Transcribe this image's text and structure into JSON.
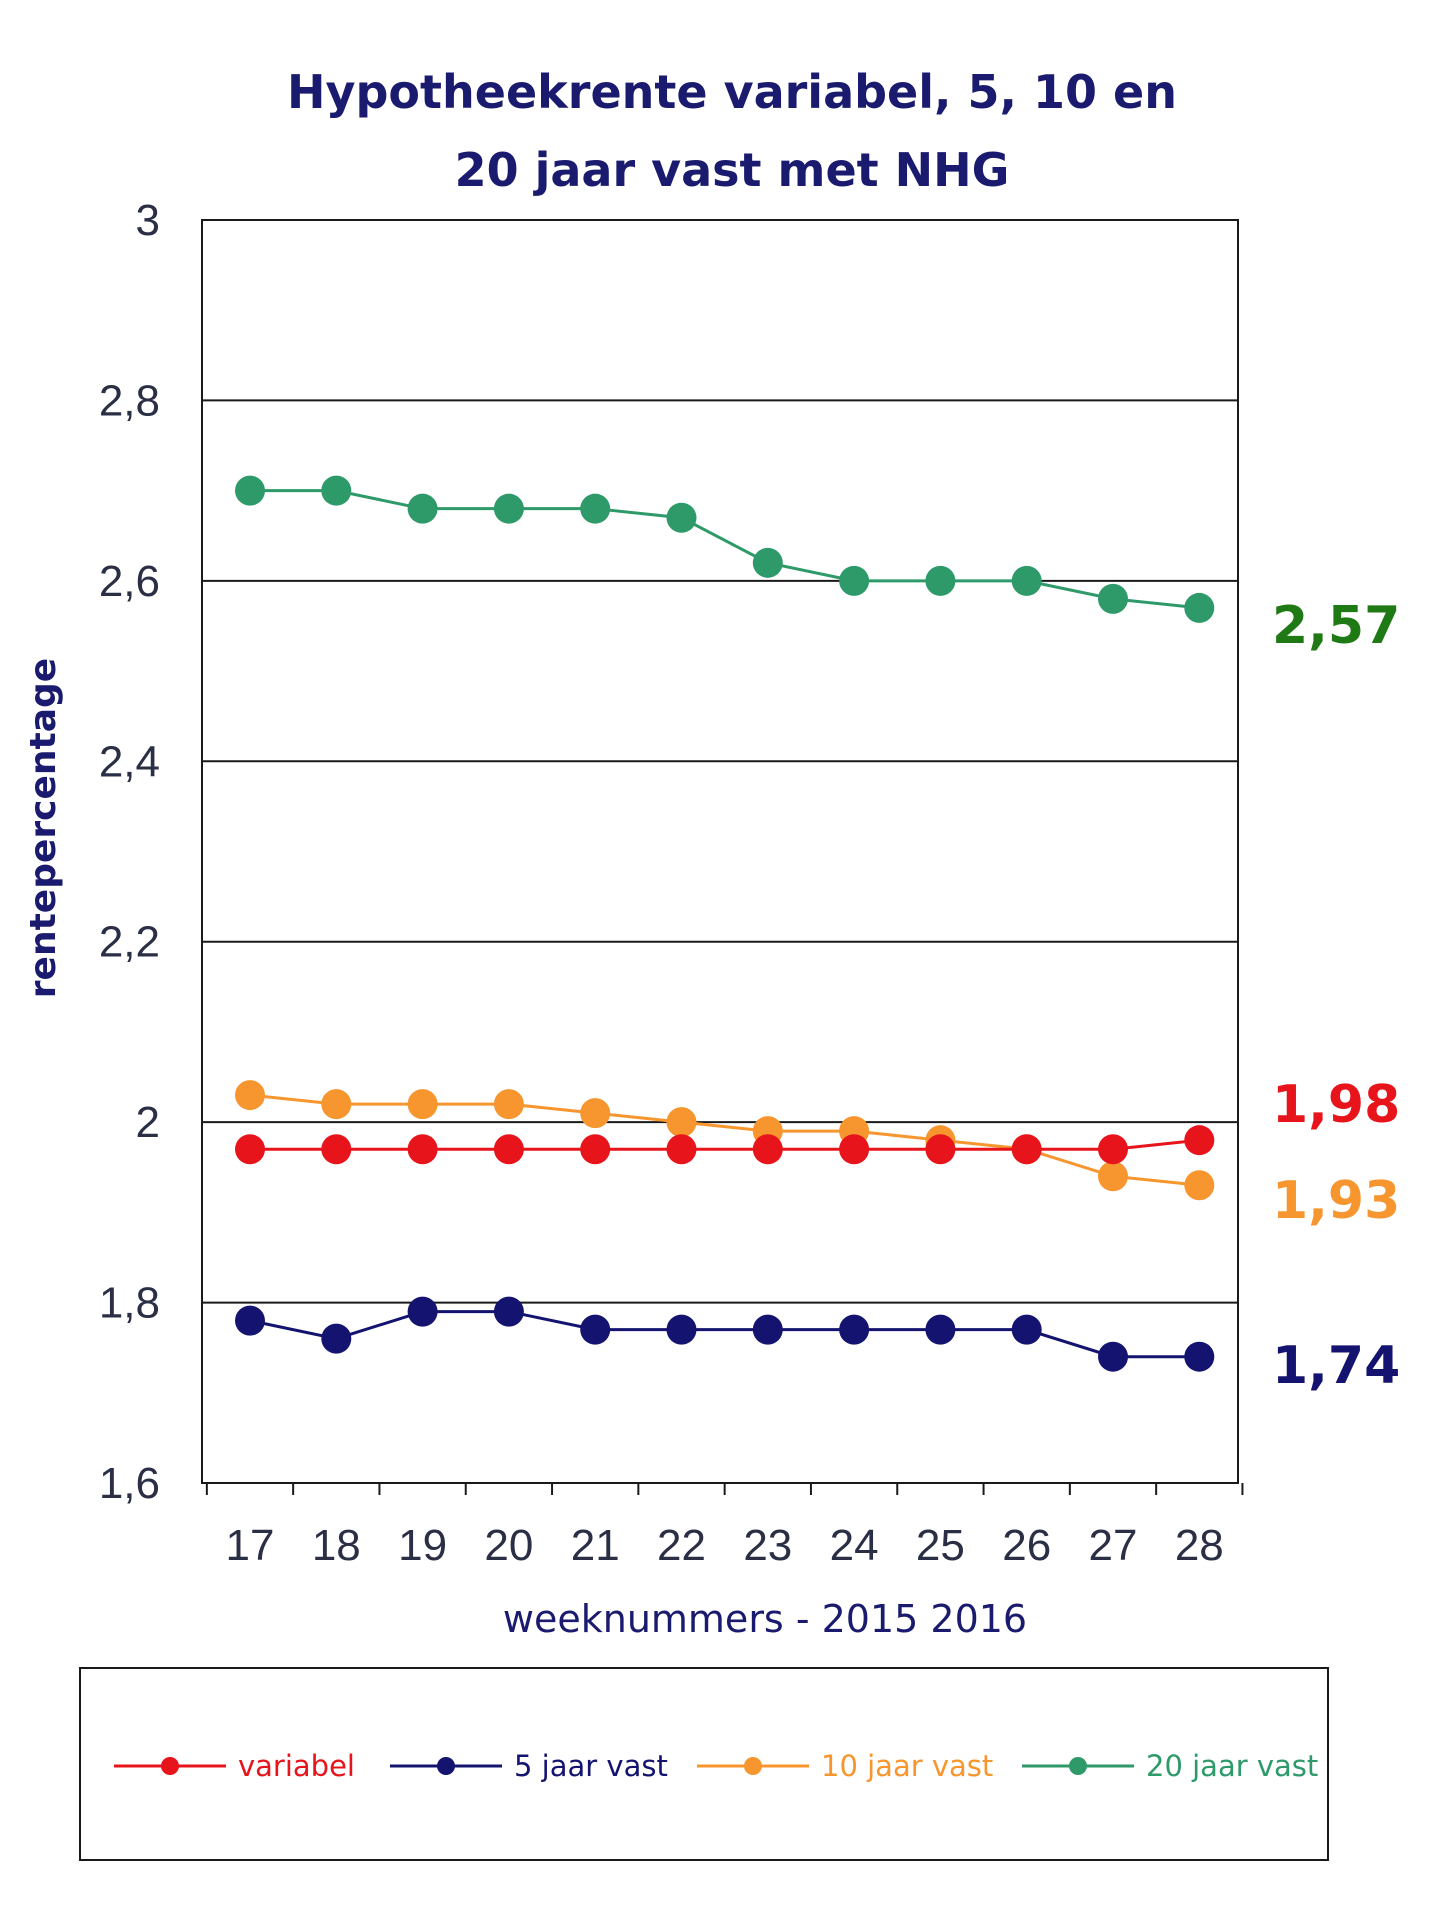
{
  "chart_data": {
    "type": "line",
    "title_line1": "Hypotheekrente variabel, 5, 10 en",
    "title_line2": "20 jaar vast met NHG",
    "xlabel": "weeknummers  - 2015 2016",
    "ylabel": "rentepercentage",
    "ylim": [
      1.6,
      3.0
    ],
    "yticks": [
      "1,6",
      "1,8",
      "2",
      "2,2",
      "2,4",
      "2,6",
      "2,8",
      "3"
    ],
    "yticks_values": [
      1.6,
      1.8,
      2.0,
      2.2,
      2.4,
      2.6,
      2.8,
      3.0
    ],
    "grid": true,
    "legend_position": "bottom",
    "categories": [
      "17",
      "18",
      "19",
      "20",
      "21",
      "22",
      "23",
      "24",
      "25",
      "26",
      "27",
      "28"
    ],
    "series": [
      {
        "name": "variabel",
        "color": "#e8141b",
        "values": [
          1.97,
          1.97,
          1.97,
          1.97,
          1.97,
          1.97,
          1.97,
          1.97,
          1.97,
          1.97,
          1.97,
          1.98
        ],
        "end_label": "1,98",
        "end_label_color": "#e8141b"
      },
      {
        "name": "5 jaar vast",
        "color": "#141470",
        "values": [
          1.78,
          1.76,
          1.79,
          1.79,
          1.77,
          1.77,
          1.77,
          1.77,
          1.77,
          1.77,
          1.74,
          1.74
        ],
        "end_label": "1,74",
        "end_label_color": "#141470"
      },
      {
        "name": "10 jaar vast",
        "color": "#f7962e",
        "values": [
          2.03,
          2.02,
          2.02,
          2.02,
          2.01,
          2.0,
          1.99,
          1.99,
          1.98,
          1.97,
          1.94,
          1.93
        ],
        "end_label": "1,93",
        "end_label_color": "#f7962e"
      },
      {
        "name": "20 jaar vast",
        "color": "#2e9a6a",
        "values": [
          2.7,
          2.7,
          2.68,
          2.68,
          2.68,
          2.67,
          2.62,
          2.6,
          2.6,
          2.6,
          2.58,
          2.57
        ],
        "end_label": "2,57",
        "end_label_color": "#1f7a16"
      }
    ]
  }
}
